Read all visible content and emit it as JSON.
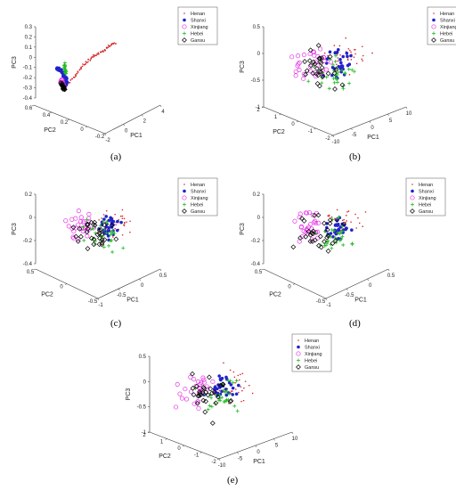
{
  "figure": {
    "captions": [
      "(a)",
      "(b)",
      "(c)",
      "(d)",
      "(e)"
    ]
  },
  "legend": {
    "entries": [
      "Henan",
      "Shanxi",
      "Xinjiang",
      "Hebei",
      "Gansu"
    ],
    "markers": [
      "dot",
      "star",
      "circle",
      "plus",
      "diamond"
    ],
    "colors": [
      "#d62728",
      "#2222cc",
      "#e633e6",
      "#22bb22",
      "#000000"
    ]
  },
  "chart_data": [
    {
      "type": "scatter",
      "panel": "a",
      "title": "",
      "xlabel": "PC1",
      "ylabel": "PC2",
      "zlabel": "PC3",
      "xticks": [
        "-2",
        "0",
        "2",
        "4"
      ],
      "yticks": [
        "-0.2",
        "0",
        "0.2",
        "0.4",
        "0.6"
      ],
      "zticks": [
        "-0.4",
        "-0.3",
        "-0.2",
        "-0.1",
        "0",
        "0.1",
        "0.2",
        "0.3"
      ],
      "xlim": [
        -2,
        4
      ],
      "ylim": [
        -0.2,
        0.6
      ],
      "zlim": [
        -0.4,
        0.3
      ],
      "series": [
        {
          "name": "Henan",
          "points": [
            [
              0.5,
              0.0,
              -0.28
            ],
            [
              1.0,
              0.05,
              -0.18
            ],
            [
              1.5,
              0.1,
              -0.05
            ],
            [
              2.0,
              0.15,
              0.05
            ],
            [
              2.5,
              0.2,
              0.12
            ],
            [
              3.0,
              0.25,
              0.2
            ],
            [
              3.5,
              0.3,
              0.27
            ]
          ]
        },
        {
          "name": "Shanxi",
          "points": [
            [
              -1.5,
              0.5,
              -0.05
            ],
            [
              -1.0,
              0.4,
              -0.08
            ],
            [
              -0.5,
              0.3,
              -0.12
            ],
            [
              0.0,
              0.2,
              -0.18
            ],
            [
              0.3,
              0.1,
              -0.24
            ],
            [
              0.5,
              0.0,
              -0.28
            ]
          ]
        },
        {
          "name": "Xinjiang",
          "points": [
            [
              -0.2,
              0.15,
              -0.22
            ],
            [
              0.1,
              0.05,
              -0.27
            ],
            [
              0.4,
              0.0,
              -0.3
            ]
          ]
        },
        {
          "name": "Hebei",
          "points": [
            [
              -0.4,
              0.3,
              -0.02
            ],
            [
              -0.2,
              0.25,
              -0.08
            ],
            [
              0.0,
              0.2,
              -0.14
            ]
          ]
        },
        {
          "name": "Gansu",
          "points": [
            [
              -0.1,
              0.1,
              -0.25
            ],
            [
              0.2,
              0.05,
              -0.3
            ],
            [
              0.4,
              0.0,
              -0.33
            ]
          ]
        }
      ]
    },
    {
      "type": "scatter",
      "panel": "b",
      "title": "",
      "xlabel": "PC1",
      "ylabel": "PC2",
      "zlabel": "PC3",
      "xticks": [
        "-10",
        "-5",
        "0",
        "5",
        "10"
      ],
      "yticks": [
        "-2",
        "-1",
        "0",
        "1",
        "2"
      ],
      "zticks": [
        "-1",
        "-0.5",
        "0",
        "0.5"
      ],
      "xlim": [
        -10,
        10
      ],
      "ylim": [
        -2,
        2
      ],
      "zlim": [
        -1,
        0.5
      ],
      "series": [
        {
          "name": "Henan",
          "spread": 0.9
        },
        {
          "name": "Shanxi",
          "spread": 0.7
        },
        {
          "name": "Xinjiang",
          "spread": 0.8
        },
        {
          "name": "Hebei",
          "spread": 0.9
        },
        {
          "name": "Gansu",
          "spread": 1.0
        }
      ]
    },
    {
      "type": "scatter",
      "panel": "c",
      "title": "",
      "xlabel": "PC1",
      "ylabel": "PC2",
      "zlabel": "PC3",
      "xticks": [
        "-1",
        "-0.5",
        "0",
        "0.5"
      ],
      "yticks": [
        "-0.5",
        "0",
        "0.5"
      ],
      "zticks": [
        "-0.4",
        "-0.2",
        "0",
        "0.2"
      ],
      "xlim": [
        -1,
        0.5
      ],
      "ylim": [
        -0.5,
        0.5
      ],
      "zlim": [
        -0.4,
        0.2
      ],
      "series": [
        {
          "name": "Henan",
          "spread": 0.8
        },
        {
          "name": "Shanxi",
          "spread": 0.6
        },
        {
          "name": "Xinjiang",
          "spread": 0.7
        },
        {
          "name": "Hebei",
          "spread": 0.8
        },
        {
          "name": "Gansu",
          "spread": 1.0
        }
      ]
    },
    {
      "type": "scatter",
      "panel": "d",
      "title": "",
      "xlabel": "PC1",
      "ylabel": "PC2",
      "zlabel": "PC3",
      "xticks": [
        "-1",
        "-0.5",
        "0",
        "0.5"
      ],
      "yticks": [
        "-0.5",
        "0",
        "0.5"
      ],
      "zticks": [
        "-0.4",
        "-0.2",
        "0",
        "0.2"
      ],
      "xlim": [
        -1,
        0.5
      ],
      "ylim": [
        -0.5,
        0.5
      ],
      "zlim": [
        -0.4,
        0.2
      ],
      "series": [
        {
          "name": "Henan",
          "spread": 0.8
        },
        {
          "name": "Shanxi",
          "spread": 0.6
        },
        {
          "name": "Xinjiang",
          "spread": 0.7
        },
        {
          "name": "Hebei",
          "spread": 0.8
        },
        {
          "name": "Gansu",
          "spread": 1.0
        }
      ]
    },
    {
      "type": "scatter",
      "panel": "e",
      "title": "",
      "xlabel": "PC1",
      "ylabel": "PC2",
      "zlabel": "PC3",
      "xticks": [
        "-10",
        "-5",
        "0",
        "5",
        "10"
      ],
      "yticks": [
        "-2",
        "-1",
        "0",
        "1",
        "2"
      ],
      "zticks": [
        "-1",
        "-0.5",
        "0",
        "0.5"
      ],
      "xlim": [
        -10,
        10
      ],
      "ylim": [
        -2,
        2
      ],
      "zlim": [
        -1,
        0.5
      ],
      "series": [
        {
          "name": "Henan",
          "spread": 0.9
        },
        {
          "name": "Shanxi",
          "spread": 0.7
        },
        {
          "name": "Xinjiang",
          "spread": 0.8
        },
        {
          "name": "Hebei",
          "spread": 0.9
        },
        {
          "name": "Gansu",
          "spread": 1.0
        }
      ]
    }
  ]
}
